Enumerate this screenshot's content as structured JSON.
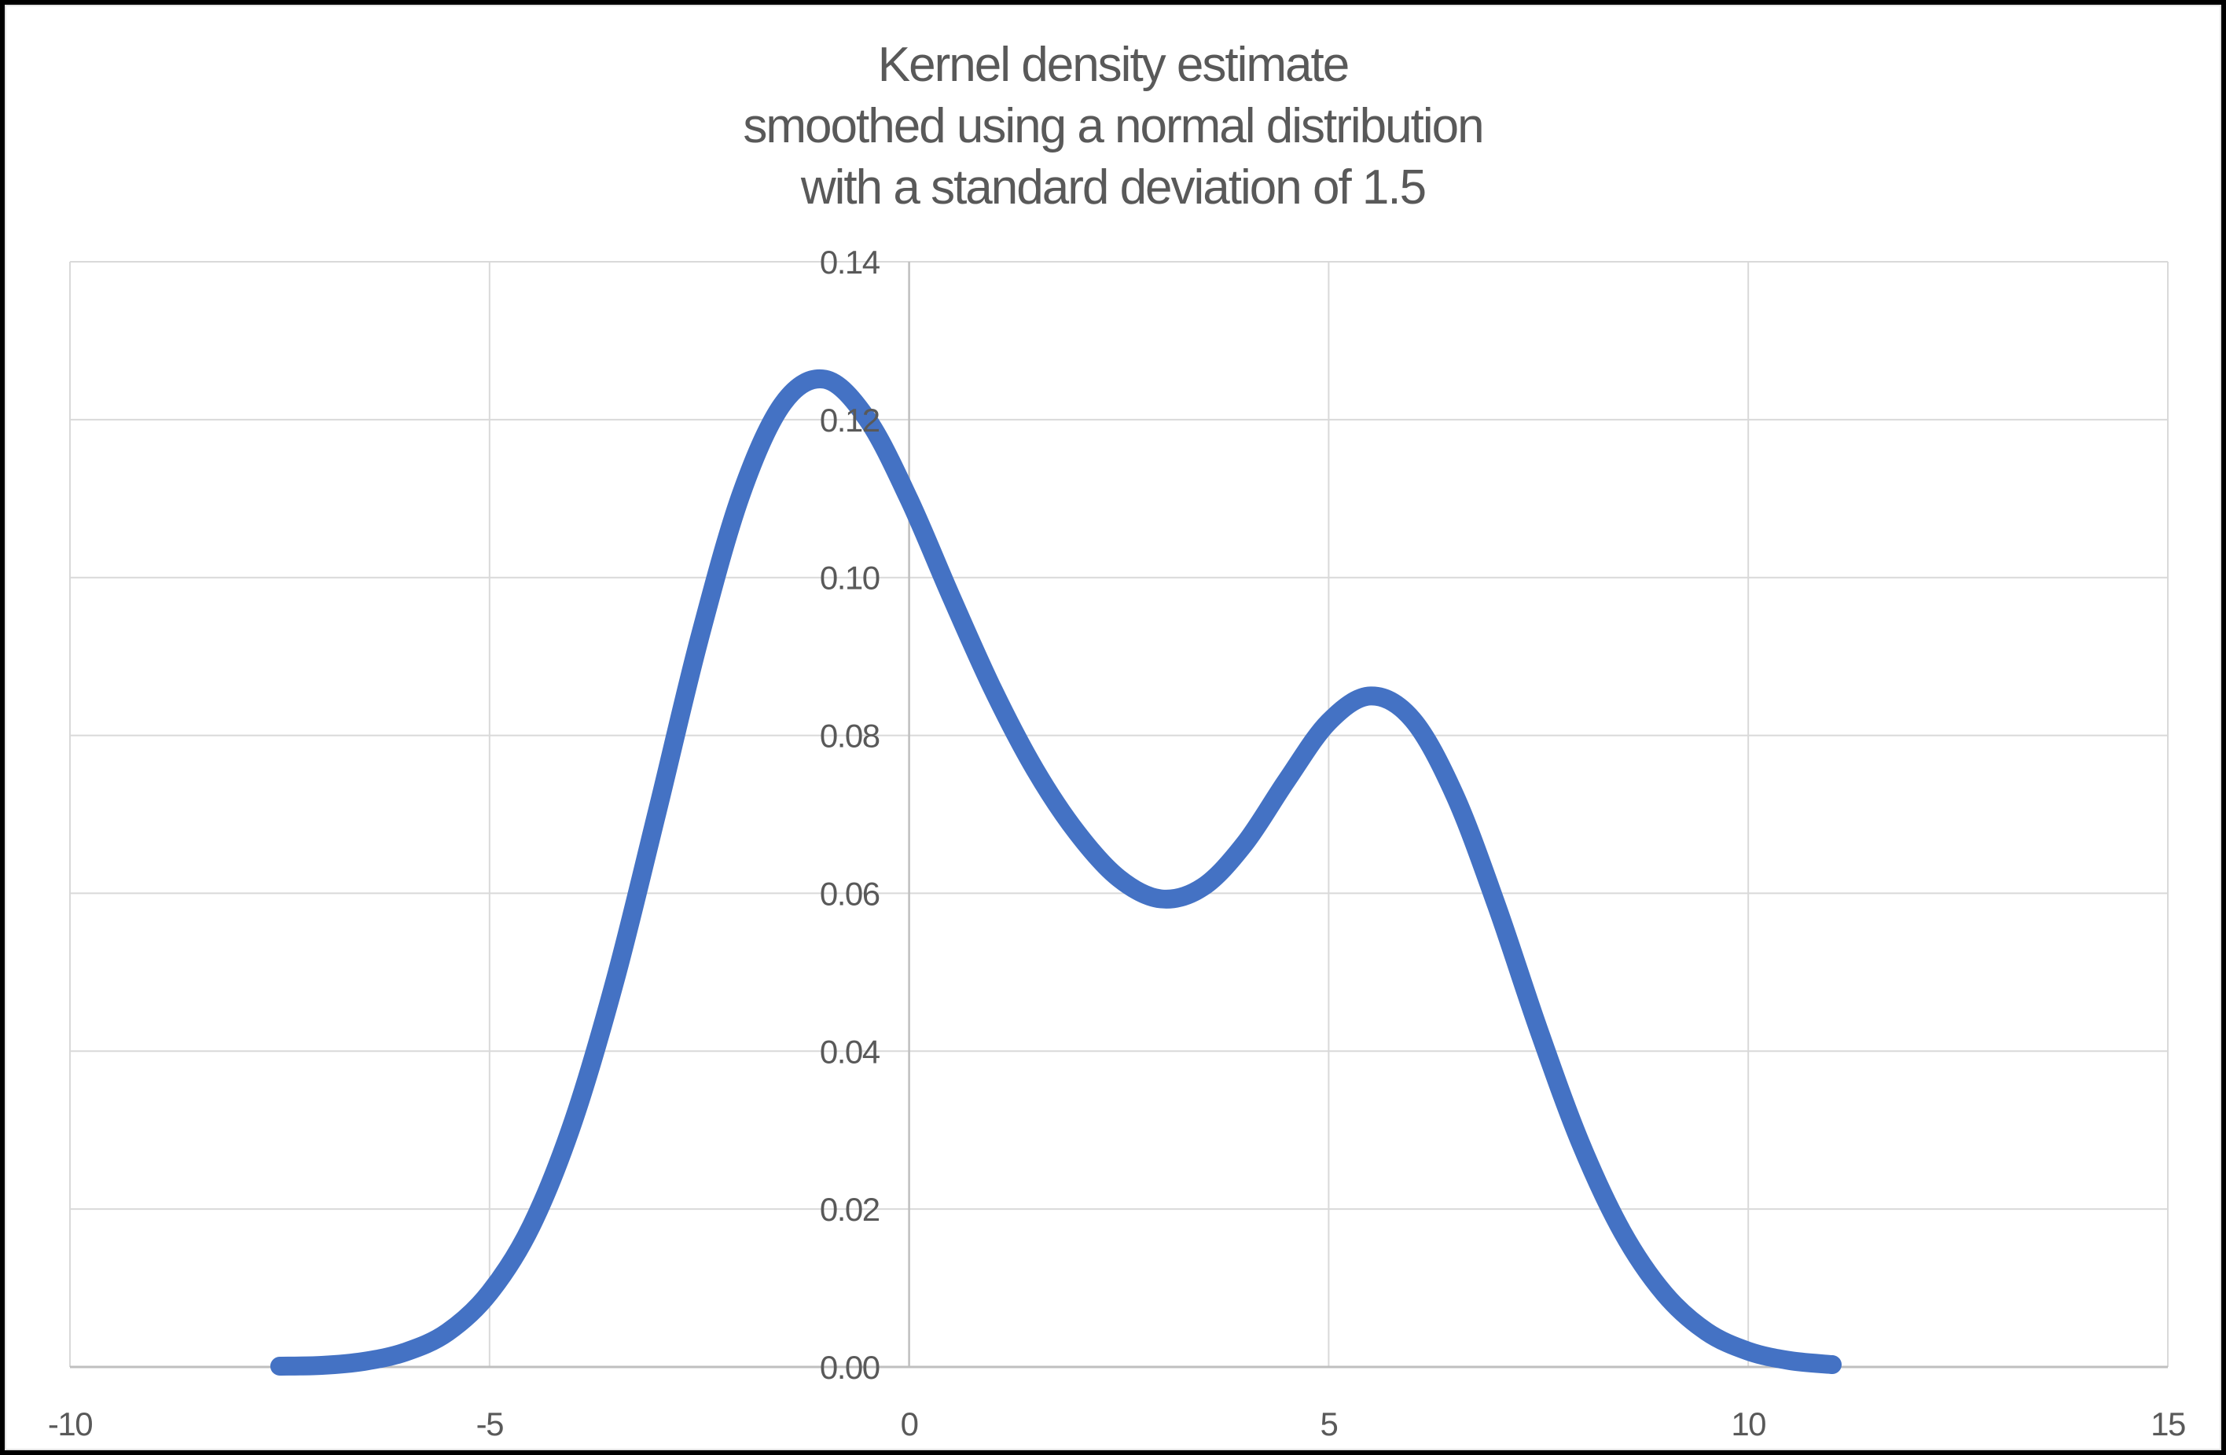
{
  "title_lines": [
    "Kernel density estimate",
    "smoothed using a normal distribution",
    "with a standard deviation of 1.5"
  ],
  "chart_data": {
    "type": "line",
    "title": "Kernel density estimate smoothed using a normal distribution with a standard deviation of 1.5",
    "xlabel": "",
    "ylabel": "",
    "xlim": [
      -10,
      15
    ],
    "ylim": [
      0,
      0.14
    ],
    "x_ticks": [
      -10,
      -5,
      0,
      5,
      10,
      15
    ],
    "x_tick_labels": [
      "-10",
      "-5",
      "0",
      "5",
      "10",
      "15"
    ],
    "y_ticks": [
      0,
      0.02,
      0.04,
      0.06,
      0.08,
      0.1,
      0.12,
      0.14
    ],
    "y_tick_labels": [
      "0.00",
      "0.02",
      "0.04",
      "0.06",
      "0.08",
      "0.10",
      "0.12",
      "0.14"
    ],
    "grid": true,
    "legend": "none",
    "series": [
      {
        "color": "#4472C4",
        "line_width": 24,
        "smoothed": true,
        "x": [
          -7.5,
          -7.0,
          -6.5,
          -6.0,
          -5.5,
          -5.0,
          -4.5,
          -4.0,
          -3.5,
          -3.0,
          -2.5,
          -2.0,
          -1.5,
          -1.0,
          -0.5,
          0.0,
          0.5,
          1.0,
          1.5,
          2.0,
          2.5,
          3.0,
          3.5,
          4.0,
          4.5,
          5.0,
          5.5,
          6.0,
          6.5,
          7.0,
          7.5,
          8.0,
          8.5,
          9.0,
          9.5,
          10.0,
          10.5,
          11.0
        ],
        "y": [
          0.0001,
          0.0002,
          0.0007,
          0.0019,
          0.0044,
          0.0094,
          0.0179,
          0.0312,
          0.0491,
          0.0704,
          0.0922,
          0.1106,
          0.1221,
          0.1251,
          0.1201,
          0.1099,
          0.0976,
          0.0858,
          0.0757,
          0.0677,
          0.0619,
          0.0593,
          0.0608,
          0.0663,
          0.0743,
          0.0817,
          0.085,
          0.082,
          0.0725,
          0.0585,
          0.0428,
          0.0284,
          0.0171,
          0.0093,
          0.0045,
          0.002,
          0.0008,
          0.0003
        ]
      }
    ],
    "features": {
      "left_peak": {
        "x": -1.05,
        "y": 0.125
      },
      "trough": {
        "x": 3.05,
        "y": 0.059
      },
      "right_peak": {
        "x": 5.5,
        "y": 0.085
      }
    }
  },
  "colors": {
    "curve": "#4472C4",
    "gridline": "#D9D9D9",
    "axis_line": "#BFBFBF",
    "text": "#595959",
    "background": "#FFFFFF",
    "frame": "#000000"
  }
}
